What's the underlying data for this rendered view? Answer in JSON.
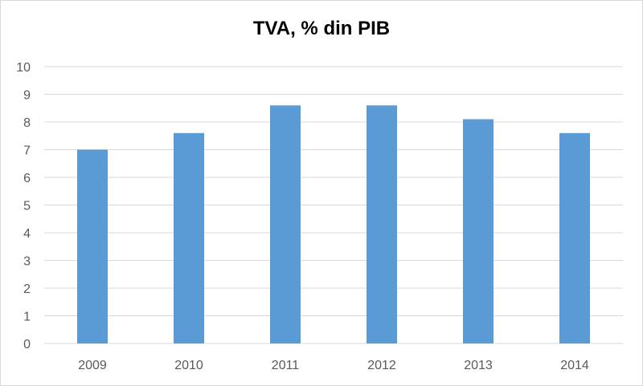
{
  "chart_data": {
    "type": "bar",
    "title": "TVA, % din PIB",
    "categories": [
      "2009",
      "2010",
      "2011",
      "2012",
      "2013",
      "2014"
    ],
    "values": [
      7.0,
      7.6,
      8.6,
      8.6,
      8.1,
      7.6
    ],
    "ylim": [
      0,
      10
    ],
    "yticks": [
      "0",
      "1",
      "2",
      "3",
      "4",
      "5",
      "6",
      "7",
      "8",
      "9",
      "10"
    ],
    "xlabel": "",
    "ylabel": "",
    "grid": true,
    "legend": "none",
    "colors": {
      "bar": "#5b9bd5",
      "grid": "#d9d9d9",
      "tick_text": "#595959"
    }
  }
}
